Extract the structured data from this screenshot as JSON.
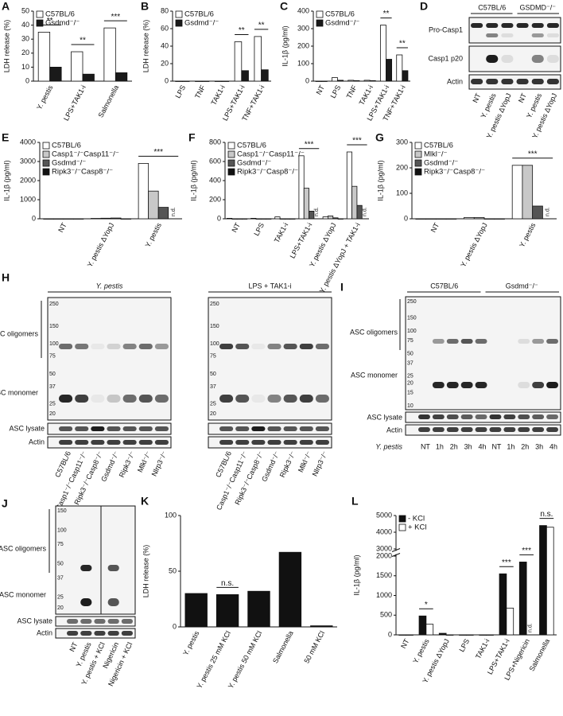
{
  "chart_data": [
    {
      "type": "bar",
      "panel": "A",
      "ylabel": "LDH release (%)",
      "categories": [
        "Y. pestis",
        "LPS+TAK1-i",
        "Salmonella"
      ],
      "series": [
        {
          "name": "C57BL/6",
          "color": "#ffffff",
          "values": [
            35,
            21,
            38
          ]
        },
        {
          "name": "Gsdmd⁻/⁻",
          "color": "#1a1a1a",
          "values": [
            10,
            5,
            6
          ]
        }
      ],
      "significance": [
        "**",
        "**",
        "***"
      ],
      "ylim": [
        0,
        50
      ],
      "yticks": [
        0,
        10,
        20,
        30,
        40,
        50
      ]
    },
    {
      "type": "bar",
      "panel": "B",
      "ylabel": "LDH release (%)",
      "categories": [
        "LPS",
        "TNF",
        "TAK1-i",
        "LPS+TAK1-i",
        "TNF+TAK1-i"
      ],
      "series": [
        {
          "name": "C57BL/6",
          "color": "#ffffff",
          "values": [
            0,
            0,
            0,
            45,
            51
          ]
        },
        {
          "name": "Gsdmd⁻/⁻",
          "color": "#1a1a1a",
          "values": [
            0,
            0,
            0,
            12,
            13
          ]
        }
      ],
      "significance": [
        null,
        null,
        null,
        "**",
        "**"
      ],
      "ylim": [
        0,
        80
      ],
      "yticks": [
        0,
        20,
        40,
        60,
        80
      ]
    },
    {
      "type": "bar",
      "panel": "C",
      "ylabel": "IL-1β (pg/ml)",
      "categories": [
        "NT",
        "LPS",
        "TNF",
        "TAK1-i",
        "LPS+TAK1-i",
        "TNF+TAK1-i"
      ],
      "series": [
        {
          "name": "C57BL/6",
          "color": "#ffffff",
          "values": [
            0,
            20,
            5,
            5,
            320,
            150
          ]
        },
        {
          "name": "Gsdmd⁻/⁻",
          "color": "#1a1a1a",
          "values": [
            0,
            5,
            3,
            3,
            125,
            60
          ]
        }
      ],
      "significance": [
        null,
        null,
        null,
        null,
        "**",
        "**"
      ],
      "ylim": [
        0,
        400
      ],
      "yticks": [
        0,
        100,
        200,
        300,
        400
      ]
    },
    {
      "type": "bar",
      "panel": "E",
      "ylabel": "IL-1β (pg/ml)",
      "categories": [
        "NT",
        "Y. pestis ΔYopJ",
        "Y. pestis"
      ],
      "series": [
        {
          "name": "C57BL/6",
          "color": "#ffffff",
          "values": [
            0,
            20,
            2900
          ]
        },
        {
          "name": "Casp1⁻/⁻Casp11⁻/⁻",
          "color": "#c8c8c8",
          "values": [
            0,
            30,
            1450
          ]
        },
        {
          "name": "Gsdmd⁻/⁻",
          "color": "#555555",
          "values": [
            0,
            40,
            600
          ]
        },
        {
          "name": "Ripk3⁻/⁻Casp8⁻/⁻",
          "color": "#111111",
          "values": [
            0,
            0,
            null
          ],
          "value_labels": [
            null,
            null,
            "n.d."
          ]
        }
      ],
      "significance": [
        null,
        null,
        "***"
      ],
      "ylim": [
        0,
        4000
      ],
      "yticks": [
        0,
        1000,
        2000,
        3000,
        4000
      ]
    },
    {
      "type": "bar",
      "panel": "F",
      "ylabel": "IL-1β (pg/ml)",
      "categories": [
        "NT",
        "LPS",
        "TAK1-i",
        "LPS+TAK1-i",
        "Y. pestis ΔYopJ",
        "Y. pestis ΔYopJ + TAK1-i"
      ],
      "series": [
        {
          "name": "C57BL/6",
          "color": "#ffffff",
          "values": [
            5,
            5,
            20,
            660,
            20,
            700
          ]
        },
        {
          "name": "Casp1⁻/⁻Casp11⁻/⁻",
          "color": "#c8c8c8",
          "values": [
            0,
            0,
            0,
            320,
            30,
            340
          ]
        },
        {
          "name": "Gsdmd⁻/⁻",
          "color": "#555555",
          "values": [
            0,
            0,
            0,
            80,
            10,
            140
          ]
        },
        {
          "name": "Ripk3⁻/⁻Casp8⁻/⁻",
          "color": "#111111",
          "values": [
            0,
            0,
            0,
            null,
            0,
            null
          ],
          "value_labels": [
            null,
            null,
            null,
            "n.d.",
            null,
            "n.d."
          ]
        }
      ],
      "significance": [
        null,
        null,
        null,
        "***",
        null,
        "***"
      ],
      "ylim": [
        0,
        800
      ],
      "yticks": [
        0,
        200,
        400,
        600,
        800
      ]
    },
    {
      "type": "bar",
      "panel": "G",
      "ylabel": "IL-1β (pg/ml)",
      "categories": [
        "NT",
        "Y. pestis ΔYopJ",
        "Y. pestis"
      ],
      "series": [
        {
          "name": "C57BL/6",
          "color": "#ffffff",
          "values": [
            0,
            5,
            210
          ]
        },
        {
          "name": "Mlkl⁻/⁻",
          "color": "#c8c8c8",
          "values": [
            0,
            5,
            210
          ]
        },
        {
          "name": "Gsdmd⁻/⁻",
          "color": "#555555",
          "values": [
            0,
            0,
            50
          ]
        },
        {
          "name": "Ripk3⁻/⁻Casp8⁻/⁻",
          "color": "#111111",
          "values": [
            0,
            0,
            null
          ],
          "value_labels": [
            null,
            null,
            "n.d."
          ]
        }
      ],
      "significance": [
        null,
        null,
        "***"
      ],
      "ylim": [
        0,
        300
      ],
      "yticks": [
        0,
        100,
        200,
        300
      ]
    },
    {
      "type": "bar",
      "panel": "K",
      "ylabel": "LDH release (%)",
      "categories": [
        "Y. pestis",
        "Y. pestis 25 mM KCl",
        "Y. pestis 50 mM KCl",
        "Salmonella",
        "50 mM KCl"
      ],
      "series": [
        {
          "name": null,
          "color": "#111111",
          "values": [
            30,
            29,
            32,
            67,
            1
          ]
        }
      ],
      "significance": [
        null,
        "n.s.",
        null,
        null,
        null
      ],
      "ylim": [
        0,
        100
      ],
      "yticks": [
        0,
        50,
        100
      ]
    },
    {
      "type": "bar",
      "panel": "L",
      "ylabel": "IL-1β (pg/ml)",
      "categories": [
        "NT",
        "Y. pestis",
        "Y. pestis ΔYopJ",
        "LPS",
        "TAK1-i",
        "LPS+TAK1-i",
        "LPS+Nigericin",
        "Salmonella"
      ],
      "series": [
        {
          "name": "- KCl",
          "color": "#111111",
          "values": [
            0,
            480,
            40,
            0,
            0,
            1550,
            1850,
            4400
          ]
        },
        {
          "name": "+ KCl",
          "color": "#ffffff",
          "values": [
            0,
            270,
            0,
            0,
            0,
            680,
            null,
            4300
          ],
          "value_labels": [
            null,
            null,
            null,
            null,
            null,
            null,
            "n.d.",
            null
          ]
        }
      ],
      "significance": [
        null,
        "*",
        null,
        null,
        null,
        "***",
        "***",
        "n.s."
      ],
      "ylim": [
        0,
        5000
      ],
      "axis_break": [
        2000,
        3000
      ],
      "yticks": [
        0,
        500,
        1000,
        1500,
        2000,
        3000,
        4000,
        5000
      ]
    }
  ],
  "blots": {
    "D": {
      "panel": "D",
      "groups": [
        "C57BL/6",
        "GSDMD⁻/⁻"
      ],
      "rows": [
        "Pro-Casp1",
        "Casp1 p20",
        "Actin"
      ],
      "lanes": [
        "NT",
        "Y. pestis",
        "Y. pestis ΔYopJ",
        "NT",
        "Y. pestis",
        "Y. pestis ΔYopJ"
      ]
    },
    "H": {
      "panel": "H",
      "titles": [
        "Y. pestis",
        "LPS + TAK1-i"
      ],
      "markers": [
        250,
        150,
        100,
        75,
        50,
        37,
        25,
        20
      ],
      "labels": [
        "ASC oligomers",
        "ASC monomer",
        "ASC lysate",
        "Actin"
      ],
      "lanes": [
        "C57BL/6",
        "Casp1⁻/⁻Casp11⁻/⁻",
        "Ripk3⁻/⁻Casp8⁻/⁻",
        "Gsdmd⁻/⁻",
        "Ripk3⁻/⁻",
        "Mlkl⁻/⁻",
        "Nlrp3⁻/⁻"
      ]
    },
    "I": {
      "panel": "I",
      "groups": [
        "C57BL/6",
        "Gsdmd⁻/⁻"
      ],
      "markers": [
        250,
        150,
        100,
        75,
        50,
        37,
        25,
        20,
        15,
        10
      ],
      "labels": [
        "ASC oligomers",
        "ASC monomer",
        "ASC lysate",
        "Actin"
      ],
      "row_title": "Y. pestis",
      "lanes": [
        "NT",
        "1h",
        "2h",
        "3h",
        "4h",
        "NT",
        "1h",
        "2h",
        "3h",
        "4h"
      ]
    },
    "J": {
      "panel": "J",
      "markers": [
        150,
        100,
        75,
        50,
        37,
        25,
        20
      ],
      "labels": [
        "ASC oligomers",
        "ASC monomer",
        "ASC lysate",
        "Actin"
      ],
      "lanes": [
        "NT",
        "Y. pestis",
        "Y. pestis + KCl",
        "Nigericin",
        "Nigericin + KCl"
      ]
    }
  }
}
